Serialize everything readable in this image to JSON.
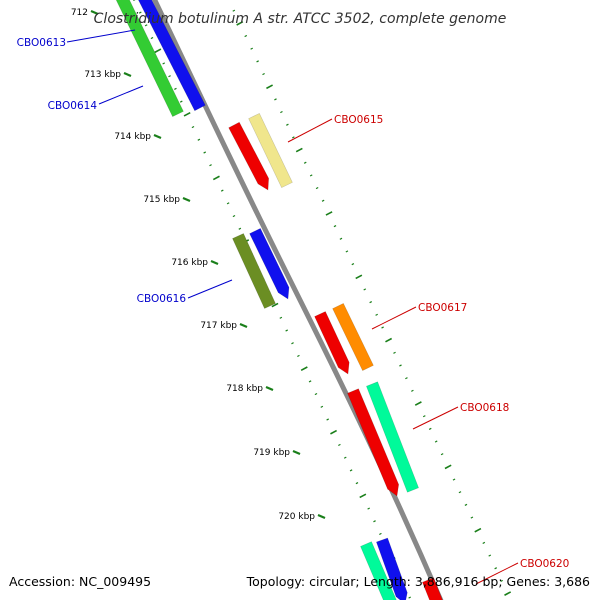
{
  "title": "Clostridium botulinum A str. ATCC 3502, complete genome",
  "footer": {
    "accession": "Accession: NC_009495",
    "topology": "Topology: circular; Length: 3,886,916 bp; Genes: 3,686"
  },
  "ticks": [
    "712",
    "713 kbp",
    "714 kbp",
    "715 kbp",
    "716 kbp",
    "717 kbp",
    "718 kbp",
    "719 kbp",
    "720 kbp"
  ],
  "colors": {
    "backbone": "#888888",
    "tick": "#1a7f1a",
    "label_forward": "#cc0000",
    "label_reverse": "#0000cc",
    "red": "#ee0000",
    "blue": "#1010ee",
    "green": "#33cc33",
    "khaki": "#f0e68c",
    "olive": "#6b8e23",
    "orange": "#ff8c00",
    "spring": "#00fa9a"
  },
  "genes": [
    {
      "label": "CBO0613",
      "strand": "reverse",
      "color": "blue"
    },
    {
      "label": "CBO0614",
      "strand": "reverse",
      "color": "green"
    },
    {
      "label": "CBO0615",
      "strand": "forward",
      "color": "khaki"
    },
    {
      "label": "CBO0616",
      "strand": "reverse",
      "color": "olive"
    },
    {
      "label": "CBO0617",
      "strand": "forward",
      "color": "orange"
    },
    {
      "label": "CBO0618",
      "strand": "forward",
      "color": "spring"
    },
    {
      "label": "CBO0620",
      "strand": "forward",
      "color": "red"
    }
  ]
}
